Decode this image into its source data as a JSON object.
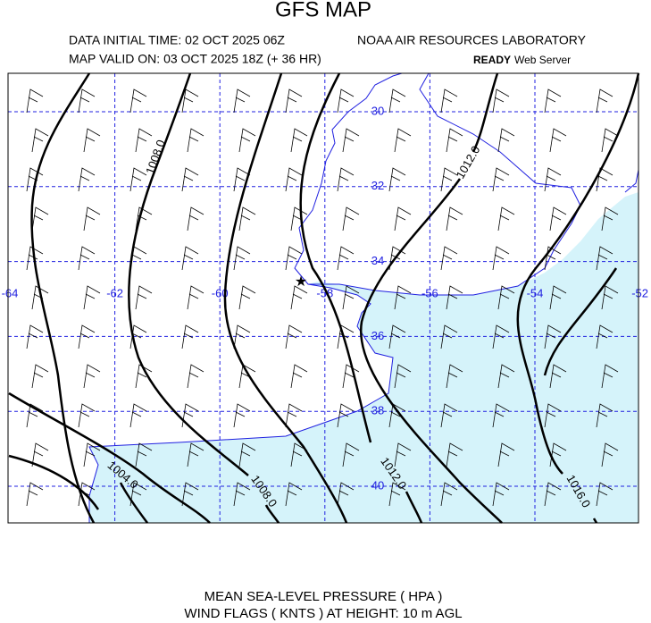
{
  "title": "GFS MAP",
  "header": {
    "initial_time": "DATA INITIAL TIME: 02 OCT 2025 06Z",
    "valid_time": "MAP VALID ON: 03 OCT 2025 18Z (+ 36 HR)",
    "lab": "NOAA AIR RESOURCES LABORATORY",
    "server_bold": "READY",
    "server": "Web Server"
  },
  "map": {
    "lon_labels": [
      "-64",
      "-62",
      "-60",
      "-58",
      "-56",
      "-54",
      "-52"
    ],
    "lat_labels": [
      "30",
      "32",
      "34",
      "36",
      "38",
      "40"
    ],
    "isobar_labels": [
      "1008.0",
      "1012.0",
      "1004.0",
      "1008.0",
      "1012.0",
      "1016.0"
    ]
  },
  "footer": [
    "MEAN SEA-LEVEL PRESSURE ( HPA  )",
    "WIND FLAGS ( KNTS ) AT HEIGHT: 10 m AGL"
  ]
}
